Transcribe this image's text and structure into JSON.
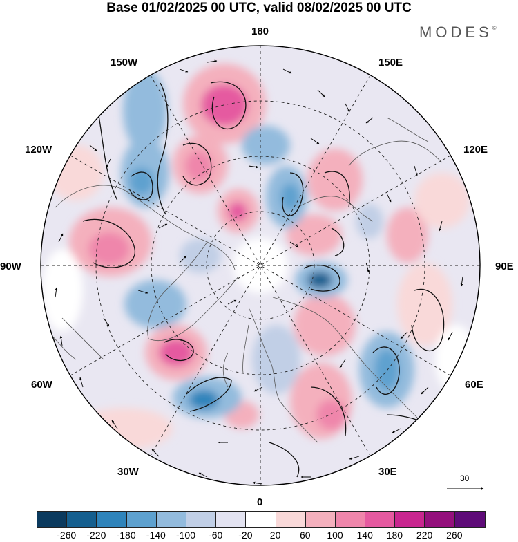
{
  "title": "Base 01/02/2025 00 UTC, valid 08/02/2025 00 UTC",
  "brand": {
    "name": "MODES",
    "mark": "©"
  },
  "lon_labels": {
    "l180": "180",
    "l150w": "150W",
    "l150e": "150E",
    "l120w": "120W",
    "l120e": "120E",
    "l90w": "90W",
    "l90e": "90E",
    "l60w": "60W",
    "l60e": "60E",
    "l30w": "30W",
    "l30e": "30E",
    "l0": "0"
  },
  "reference_vector": {
    "value": "30"
  },
  "colorbar": {
    "colors": [
      "#0b3a5e",
      "#155f8f",
      "#2f84bb",
      "#5ea1cf",
      "#93bbdd",
      "#c1cfe6",
      "#e3e3f1",
      "#ffffff",
      "#f9d9d9",
      "#f4b0bd",
      "#ef86ab",
      "#e55aa0",
      "#c8268f",
      "#94107c",
      "#5e0b78"
    ],
    "tick_labels": [
      "-260",
      "-220",
      "-180",
      "-140",
      "-100",
      "-60",
      "-20",
      "20",
      "60",
      "100",
      "140",
      "180",
      "220",
      "260"
    ]
  }
}
